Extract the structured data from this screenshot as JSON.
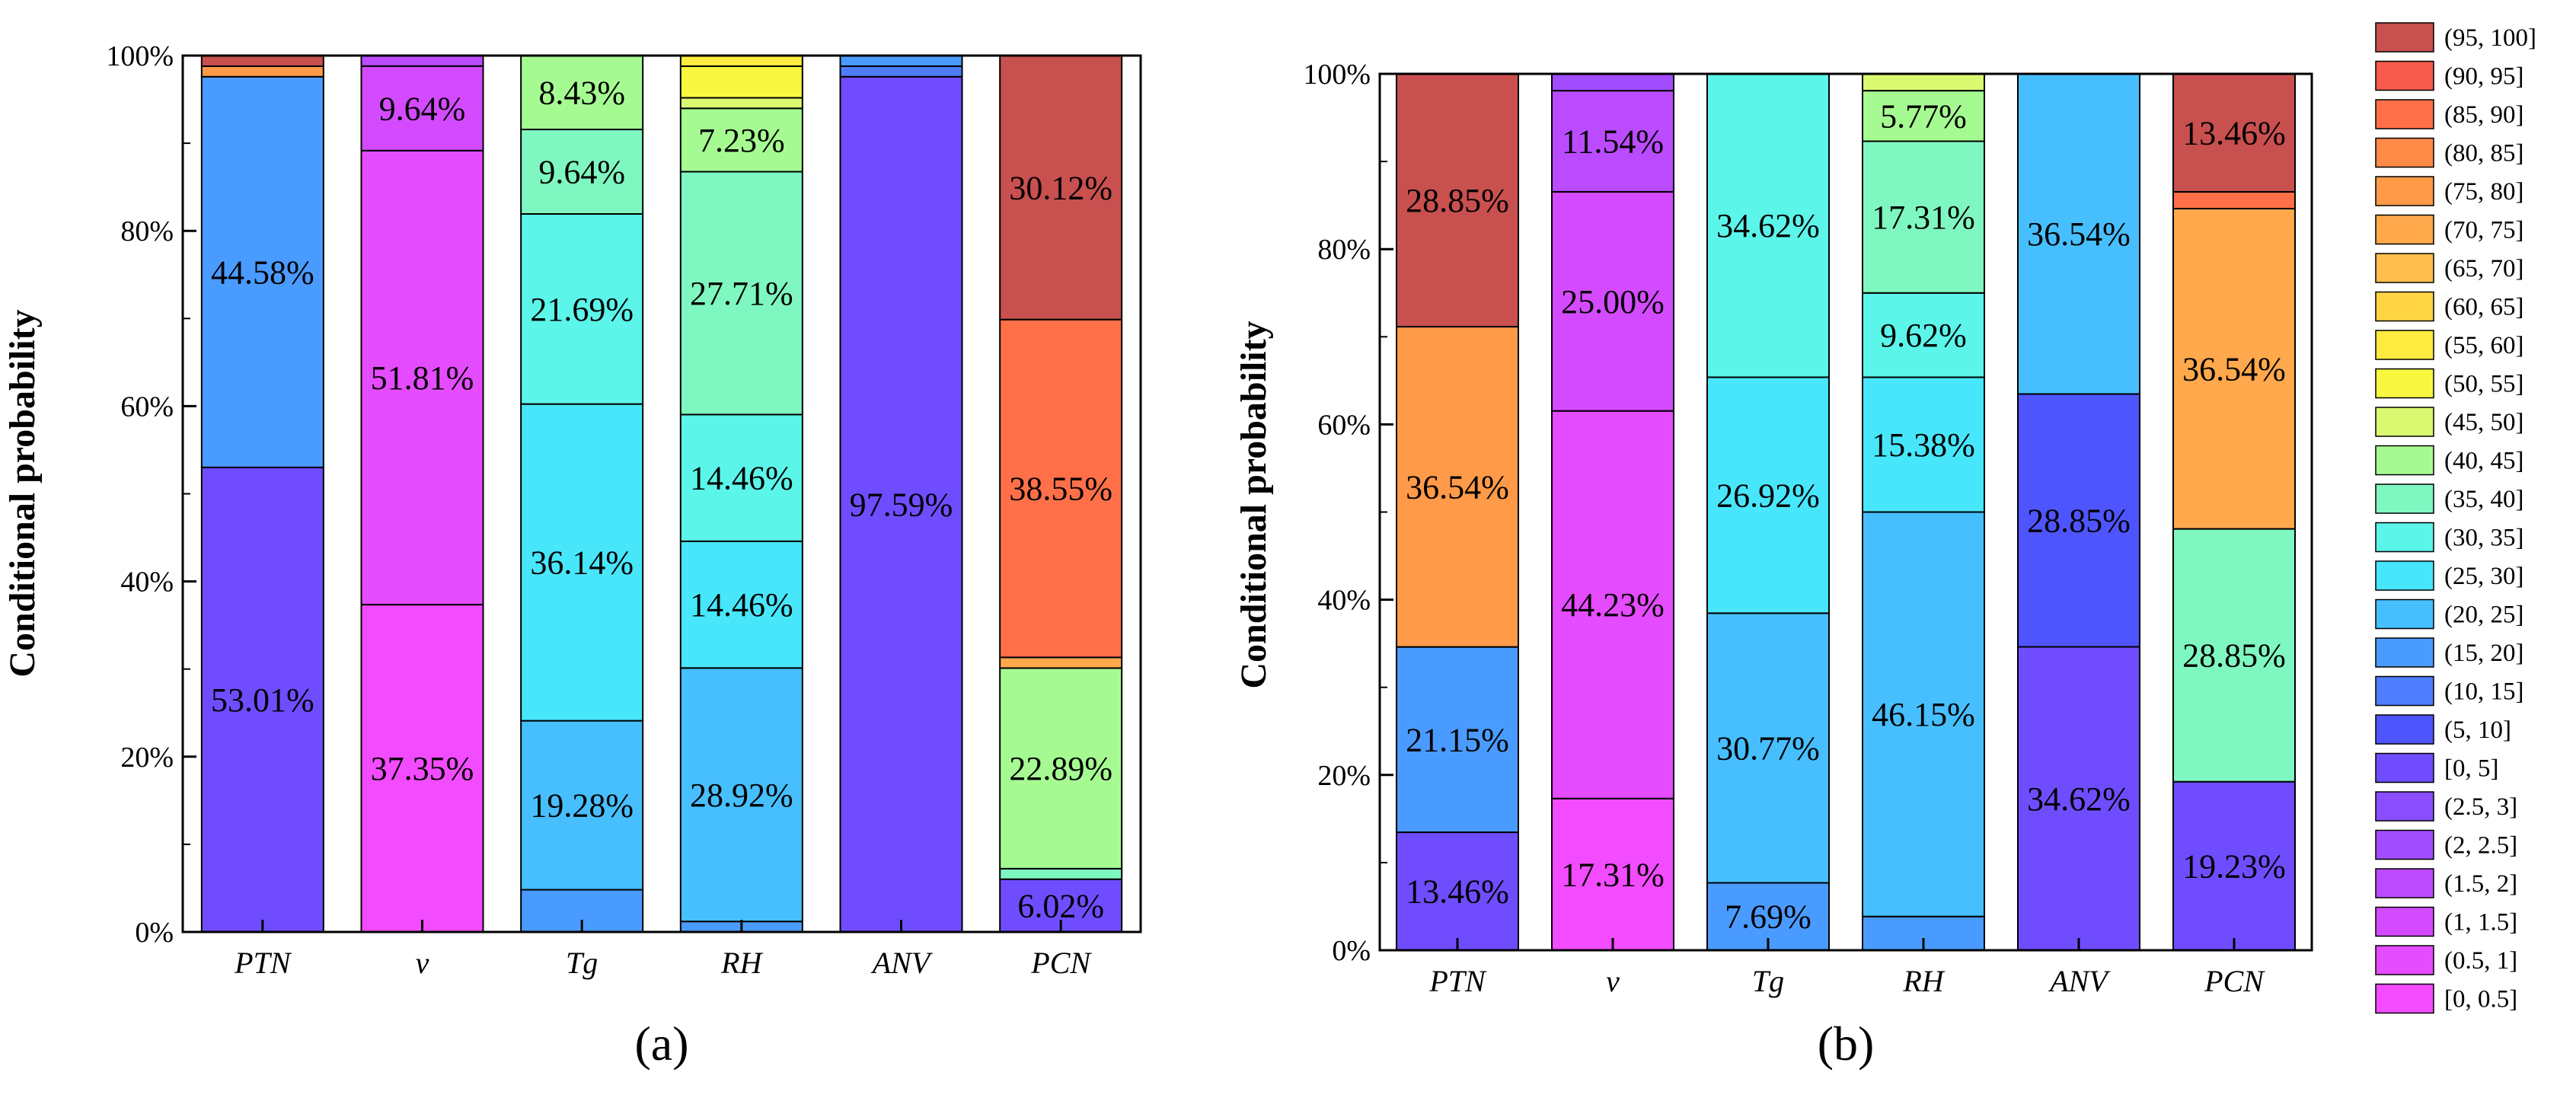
{
  "chart_data": [
    {
      "type": "bar",
      "stacked": true,
      "panel_label": "(a)",
      "ylabel": "Conditional probability",
      "ylim": [
        0,
        100
      ],
      "yticks": [
        "0%",
        "20%",
        "40%",
        "60%",
        "80%",
        "100%"
      ],
      "categories": [
        "PTN",
        "v",
        "Tg",
        "RH",
        "ANV",
        "PCN"
      ],
      "bars": [
        {
          "category": "PTN",
          "segments": [
            {
              "bin": "[0, 5]",
              "value": 53.01,
              "label": "53.01%"
            },
            {
              "bin": "(15, 20]",
              "value": 44.58,
              "label": "44.58%"
            },
            {
              "bin": "(75, 80]",
              "value": 1.2,
              "label": ""
            },
            {
              "bin": "(95, 100]",
              "value": 1.21,
              "label": ""
            }
          ]
        },
        {
          "category": "v",
          "segments": [
            {
              "bin": "[0, 0.5]",
              "value": 37.35,
              "label": "37.35%"
            },
            {
              "bin": "(0.5, 1]",
              "value": 51.81,
              "label": "51.81%"
            },
            {
              "bin": "(1, 1.5]",
              "value": 9.64,
              "label": "9.64%"
            },
            {
              "bin": "(1.5, 2]",
              "value": 1.2,
              "label": ""
            }
          ]
        },
        {
          "category": "Tg",
          "segments": [
            {
              "bin": "(15, 20]",
              "value": 4.82,
              "label": ""
            },
            {
              "bin": "(20, 25]",
              "value": 19.28,
              "label": "19.28%"
            },
            {
              "bin": "(25, 30]",
              "value": 36.14,
              "label": "36.14%"
            },
            {
              "bin": "(30, 35]",
              "value": 21.69,
              "label": "21.69%"
            },
            {
              "bin": "(35, 40]",
              "value": 9.64,
              "label": "9.64%"
            },
            {
              "bin": "(40, 45]",
              "value": 8.43,
              "label": "8.43%"
            }
          ]
        },
        {
          "category": "RH",
          "segments": [
            {
              "bin": "(15, 20]",
              "value": 1.2,
              "label": ""
            },
            {
              "bin": "(20, 25]",
              "value": 28.92,
              "label": "28.92%"
            },
            {
              "bin": "(25, 30]",
              "value": 14.46,
              "label": "14.46%"
            },
            {
              "bin": "(30, 35]",
              "value": 14.46,
              "label": "14.46%"
            },
            {
              "bin": "(35, 40]",
              "value": 27.71,
              "label": "27.71%"
            },
            {
              "bin": "(40, 45]",
              "value": 7.23,
              "label": "7.23%"
            },
            {
              "bin": "(45, 50]",
              "value": 1.2,
              "label": ""
            },
            {
              "bin": "(50, 55]",
              "value": 3.61,
              "label": ""
            },
            {
              "bin": "(55, 60]",
              "value": 1.21,
              "label": ""
            }
          ]
        },
        {
          "category": "ANV",
          "segments": [
            {
              "bin": "[0, 5]",
              "value": 97.59,
              "label": "97.59%"
            },
            {
              "bin": "(10, 15]",
              "value": 1.2,
              "label": ""
            },
            {
              "bin": "(15, 20]",
              "value": 1.21,
              "label": ""
            }
          ]
        },
        {
          "category": "PCN",
          "segments": [
            {
              "bin": "[0, 5]",
              "value": 6.02,
              "label": "6.02%"
            },
            {
              "bin": "(35, 40]",
              "value": 1.2,
              "label": ""
            },
            {
              "bin": "(40, 45]",
              "value": 22.89,
              "label": "22.89%"
            },
            {
              "bin": "(70, 75]",
              "value": 1.22,
              "label": ""
            },
            {
              "bin": "(85, 90]",
              "value": 38.55,
              "label": "38.55%"
            },
            {
              "bin": "(95, 100]",
              "value": 30.12,
              "label": "30.12%"
            }
          ]
        }
      ]
    },
    {
      "type": "bar",
      "stacked": true,
      "panel_label": "(b)",
      "ylabel": "Conditional probability",
      "ylim": [
        0,
        100
      ],
      "yticks": [
        "0%",
        "20%",
        "40%",
        "60%",
        "80%",
        "100%"
      ],
      "categories": [
        "PTN",
        "v",
        "Tg",
        "RH",
        "ANV",
        "PCN"
      ],
      "bars": [
        {
          "category": "PTN",
          "segments": [
            {
              "bin": "[0, 5]",
              "value": 13.46,
              "label": "13.46%"
            },
            {
              "bin": "(15, 20]",
              "value": 21.15,
              "label": "21.15%"
            },
            {
              "bin": "(75, 80]",
              "value": 36.54,
              "label": "36.54%"
            },
            {
              "bin": "(95, 100]",
              "value": 28.85,
              "label": "28.85%"
            }
          ]
        },
        {
          "category": "v",
          "segments": [
            {
              "bin": "[0, 0.5]",
              "value": 17.31,
              "label": "17.31%"
            },
            {
              "bin": "(0.5, 1]",
              "value": 44.23,
              "label": "44.23%"
            },
            {
              "bin": "(1, 1.5]",
              "value": 25.0,
              "label": "25.00%"
            },
            {
              "bin": "(1.5, 2]",
              "value": 11.54,
              "label": "11.54%"
            },
            {
              "bin": "(2, 2.5]",
              "value": 1.92,
              "label": ""
            }
          ]
        },
        {
          "category": "Tg",
          "segments": [
            {
              "bin": "(15, 20]",
              "value": 7.69,
              "label": "7.69%"
            },
            {
              "bin": "(20, 25]",
              "value": 30.77,
              "label": "30.77%"
            },
            {
              "bin": "(25, 30]",
              "value": 26.92,
              "label": "26.92%"
            },
            {
              "bin": "(30, 35]",
              "value": 34.62,
              "label": "34.62%"
            }
          ]
        },
        {
          "category": "RH",
          "segments": [
            {
              "bin": "(15, 20]",
              "value": 3.85,
              "label": ""
            },
            {
              "bin": "(20, 25]",
              "value": 46.15,
              "label": "46.15%"
            },
            {
              "bin": "(25, 30]",
              "value": 15.38,
              "label": "15.38%"
            },
            {
              "bin": "(30, 35]",
              "value": 9.62,
              "label": "9.62%"
            },
            {
              "bin": "(35, 40]",
              "value": 17.31,
              "label": "17.31%"
            },
            {
              "bin": "(40, 45]",
              "value": 5.77,
              "label": "5.77%"
            },
            {
              "bin": "(45, 50]",
              "value": 1.92,
              "label": ""
            }
          ]
        },
        {
          "category": "ANV",
          "segments": [
            {
              "bin": "[0, 5]",
              "value": 34.62,
              "label": "34.62%"
            },
            {
              "bin": "(5, 10]",
              "value": 28.85,
              "label": "28.85%"
            },
            {
              "bin": "(20, 25]",
              "value": 36.54,
              "label": "36.54%"
            }
          ]
        },
        {
          "category": "PCN",
          "segments": [
            {
              "bin": "[0, 5]",
              "value": 19.23,
              "label": "19.23%"
            },
            {
              "bin": "(35, 40]",
              "value": 28.85,
              "label": "28.85%"
            },
            {
              "bin": "(70, 75]",
              "value": 36.54,
              "label": "36.54%"
            },
            {
              "bin": "(85, 90]",
              "value": 1.92,
              "label": ""
            },
            {
              "bin": "(95, 100]",
              "value": 13.46,
              "label": "13.46%"
            }
          ]
        }
      ]
    }
  ],
  "legend": {
    "entries": [
      {
        "label": "(95, 100]",
        "color": "#C8504F"
      },
      {
        "label": "(90, 95]",
        "color": "#F75A4C"
      },
      {
        "label": "(85, 90]",
        "color": "#FF7048"
      },
      {
        "label": "(80, 85]",
        "color": "#FF8A48"
      },
      {
        "label": "(75, 80]",
        "color": "#FF9A48"
      },
      {
        "label": "(70, 75]",
        "color": "#FFA94C"
      },
      {
        "label": "(65, 70]",
        "color": "#FFBF4C"
      },
      {
        "label": "(60, 65]",
        "color": "#FFD545"
      },
      {
        "label": "(55, 60]",
        "color": "#FFEB3F"
      },
      {
        "label": "(50, 55]",
        "color": "#F8F740"
      },
      {
        "label": "(45, 50]",
        "color": "#DAF870"
      },
      {
        "label": "(40, 45]",
        "color": "#A6FA92"
      },
      {
        "label": "(35, 40]",
        "color": "#7FF7C0"
      },
      {
        "label": "(30, 35]",
        "color": "#5BF5EA"
      },
      {
        "label": "(25, 30]",
        "color": "#48E6FB"
      },
      {
        "label": "(20, 25]",
        "color": "#47BFFF"
      },
      {
        "label": "(15, 20]",
        "color": "#4A9BFF"
      },
      {
        "label": "(10, 15]",
        "color": "#4E7DFF"
      },
      {
        "label": "(5, 10]",
        "color": "#4E55FF"
      },
      {
        "label": "[0, 5]",
        "color": "#6F4DFF"
      },
      {
        "label": "(2.5, 3]",
        "color": "#8A4DFF"
      },
      {
        "label": "(2, 2.5]",
        "color": "#A24DFF"
      },
      {
        "label": "(1.5, 2]",
        "color": "#BB4BFF"
      },
      {
        "label": "(1, 1.5]",
        "color": "#D44BFF"
      },
      {
        "label": "(0.5, 1]",
        "color": "#E54BFF"
      },
      {
        "label": "[0, 0.5]",
        "color": "#F34BFF"
      }
    ]
  }
}
